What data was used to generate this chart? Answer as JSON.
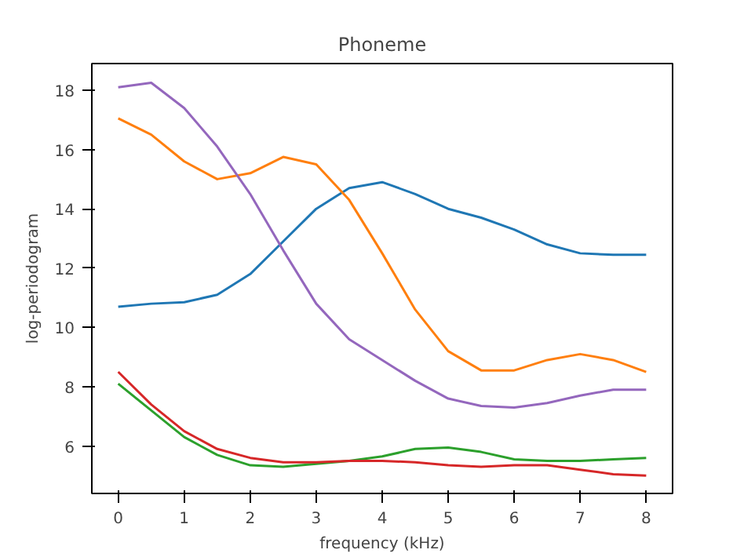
{
  "chart_data": {
    "type": "line",
    "title": "Phoneme",
    "xlabel": "frequency (kHz)",
    "ylabel": "log-periodogram",
    "x": [
      0,
      0.5,
      1,
      1.5,
      2,
      2.5,
      3,
      3.5,
      4,
      4.5,
      5,
      5.5,
      6,
      6.5,
      7,
      7.5,
      8
    ],
    "series": [
      {
        "color": "#1f77b4",
        "values": [
          10.7,
          10.8,
          10.85,
          11.1,
          11.8,
          12.9,
          14.0,
          14.7,
          14.9,
          14.5,
          14.0,
          13.7,
          13.3,
          12.8,
          12.5,
          12.45,
          12.45
        ]
      },
      {
        "color": "#ff7f0e",
        "values": [
          17.05,
          16.5,
          15.6,
          15.0,
          15.2,
          15.75,
          15.5,
          14.3,
          12.5,
          10.6,
          9.2,
          8.55,
          8.55,
          8.9,
          9.1,
          8.9,
          8.5
        ]
      },
      {
        "color": "#2ca02c",
        "values": [
          8.1,
          7.2,
          6.3,
          5.7,
          5.35,
          5.3,
          5.4,
          5.5,
          5.65,
          5.9,
          5.95,
          5.8,
          5.55,
          5.5,
          5.5,
          5.55,
          5.6
        ]
      },
      {
        "color": "#d62728",
        "values": [
          8.5,
          7.4,
          6.5,
          5.9,
          5.6,
          5.45,
          5.45,
          5.5,
          5.5,
          5.45,
          5.35,
          5.3,
          5.35,
          5.35,
          5.2,
          5.05,
          5.0
        ]
      },
      {
        "color": "#9467bd",
        "values": [
          18.1,
          18.25,
          17.4,
          16.1,
          14.5,
          12.6,
          10.8,
          9.6,
          8.9,
          8.2,
          7.6,
          7.35,
          7.3,
          7.45,
          7.7,
          7.9,
          7.9
        ]
      }
    ],
    "xlim": [
      -0.4,
      8.4
    ],
    "ylim": [
      4.4,
      18.9
    ],
    "xticks": [
      0,
      1,
      2,
      3,
      4,
      5,
      6,
      7,
      8
    ],
    "yticks": [
      6,
      8,
      10,
      12,
      14,
      16,
      18
    ],
    "grid": false
  }
}
